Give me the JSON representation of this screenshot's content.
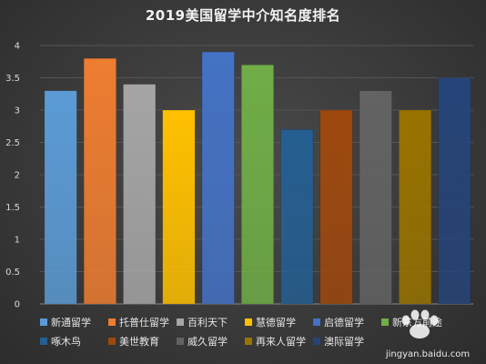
{
  "chart_data": {
    "type": "bar",
    "title": "2019美国留学中介知名度排名",
    "xlabel": "",
    "ylabel": "",
    "ylim": [
      0,
      4
    ],
    "yticks": [
      "0",
      "0.5",
      "1",
      "1.5",
      "2",
      "2.5",
      "3",
      "3.5",
      "4"
    ],
    "grid": true,
    "legend_position": "bottom",
    "categories": [
      "新通留学",
      "托普仕留学",
      "百利天下",
      "慧德留学",
      "启德留学",
      "新东方前途",
      "啄木鸟",
      "美世教育",
      "威久留学",
      "再来人留学",
      "澳际留学"
    ],
    "values": [
      3.3,
      3.8,
      3.4,
      3.0,
      3.9,
      3.7,
      2.7,
      3.0,
      3.3,
      3.0,
      3.5
    ],
    "colors": [
      "#5b9bd5",
      "#ed7d31",
      "#a5a5a5",
      "#ffc000",
      "#4472c4",
      "#70ad47",
      "#255e91",
      "#9e480e",
      "#636363",
      "#997300",
      "#264478"
    ]
  },
  "watermark": {
    "brand": "jingyan.baidu.com"
  }
}
